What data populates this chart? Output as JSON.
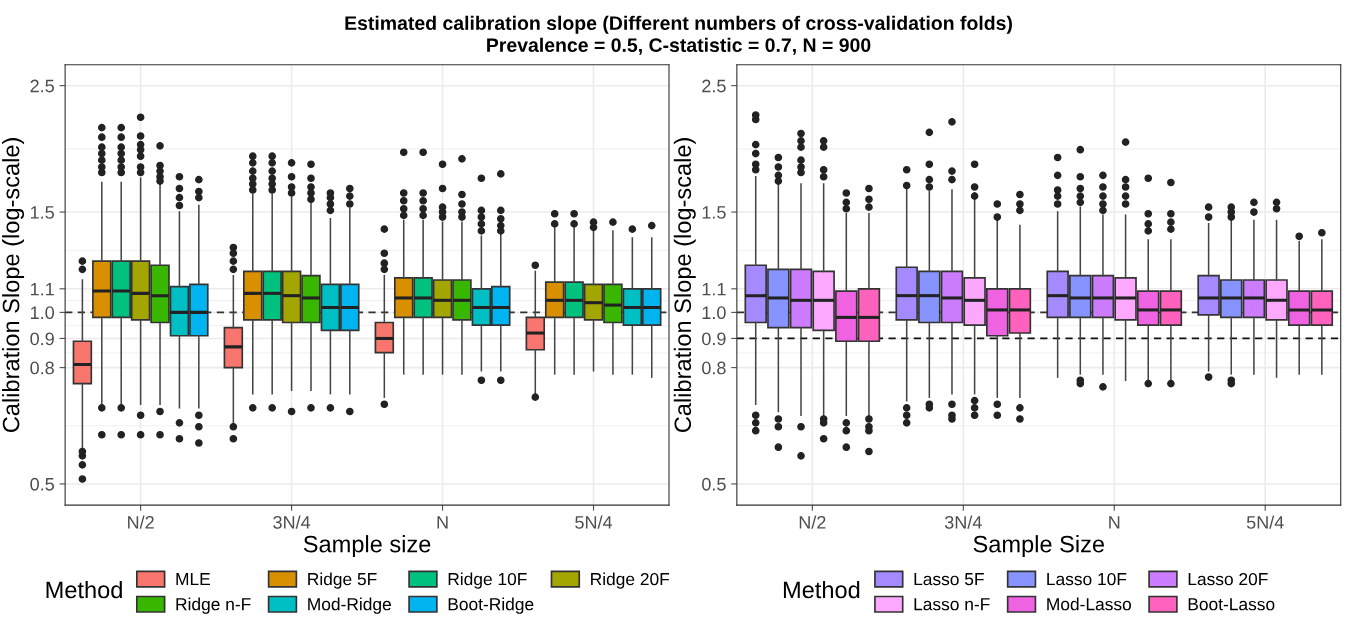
{
  "chart_data": [
    {
      "type": "box",
      "title": "Estimated calibration slope (Different numbers of cross-validation folds)",
      "subtitle": "Prevalence = 0.5, C-statistic = 0.7, N = 900",
      "categories": [
        "N/2",
        "3N/4",
        "N",
        "5N/4"
      ],
      "xlabel": "Sample size",
      "ylabel": "Calibration Slope (log-scale)",
      "log": "y",
      "ylim": [
        0.459,
        2.72
      ],
      "yticks": [
        0.5,
        0.8,
        0.9,
        {
          "value": 1.0,
          "label": "1.0"
        },
        1.1,
        1.5,
        2.5
      ],
      "grid": true,
      "legend": "bottom",
      "legend_title": "Method",
      "ref_lines": [
        {
          "axis": "y",
          "value": 1.0,
          "line_style": "dashed",
          "color": "#333333"
        }
      ],
      "series": [
        {
          "name": "MLE",
          "color": "#f8766d",
          "boxes": [
            {
              "low": 0.58,
              "q1": 0.75,
              "median": 0.81,
              "q3": 0.89,
              "high": 1.14,
              "outliers": [
                1.23,
                1.19,
                0.57,
                0.56,
                0.54,
                0.51
              ]
            },
            {
              "low": 0.64,
              "q1": 0.8,
              "median": 0.87,
              "q3": 0.94,
              "high": 1.16,
              "outliers": [
                1.3,
                1.27,
                1.23,
                1.19,
                0.63,
                0.6
              ]
            },
            {
              "low": 0.71,
              "q1": 0.85,
              "median": 0.9,
              "q3": 0.96,
              "high": 1.16,
              "outliers": [
                1.4,
                1.27,
                1.22,
                1.19,
                0.69
              ]
            },
            {
              "low": 0.72,
              "q1": 0.86,
              "median": 0.92,
              "q3": 0.98,
              "high": 1.18,
              "outliers": [
                1.21,
                0.71
              ]
            }
          ]
        },
        {
          "name": "Ridge 5F",
          "color": "#d89000",
          "boxes": [
            {
              "low": 0.69,
              "q1": 0.98,
              "median": 1.09,
              "q3": 1.23,
              "high": 1.69,
              "outliers": [
                2.11,
                2.03,
                1.95,
                1.9,
                1.85,
                1.8,
                1.76,
                0.68,
                0.61
              ]
            },
            {
              "low": 0.72,
              "q1": 0.97,
              "median": 1.08,
              "q3": 1.18,
              "high": 1.61,
              "outliers": [
                1.88,
                1.83,
                1.77,
                1.72,
                1.68,
                1.64,
                0.68
              ]
            },
            {
              "low": 0.78,
              "q1": 0.98,
              "median": 1.06,
              "q3": 1.15,
              "high": 1.45,
              "outliers": [
                1.91,
                1.62,
                1.57,
                1.52,
                1.48
              ]
            },
            {
              "low": 0.78,
              "q1": 0.98,
              "median": 1.05,
              "q3": 1.13,
              "high": 1.42,
              "outliers": [
                1.49,
                1.43
              ]
            }
          ]
        },
        {
          "name": "Ridge 10F",
          "color": "#00c17e",
          "boxes": [
            {
              "low": 0.69,
              "q1": 0.98,
              "median": 1.09,
              "q3": 1.23,
              "high": 1.69,
              "outliers": [
                2.11,
                2.03,
                1.95,
                1.9,
                1.85,
                1.8,
                1.76,
                0.68,
                0.61
              ]
            },
            {
              "low": 0.72,
              "q1": 0.97,
              "median": 1.08,
              "q3": 1.18,
              "high": 1.61,
              "outliers": [
                1.88,
                1.83,
                1.77,
                1.72,
                1.68,
                1.64,
                0.68
              ]
            },
            {
              "low": 0.78,
              "q1": 0.98,
              "median": 1.06,
              "q3": 1.15,
              "high": 1.45,
              "outliers": [
                1.91,
                1.62,
                1.57,
                1.52,
                1.48
              ]
            },
            {
              "low": 0.78,
              "q1": 0.98,
              "median": 1.05,
              "q3": 1.13,
              "high": 1.42,
              "outliers": [
                1.49,
                1.43
              ]
            }
          ]
        },
        {
          "name": "Ridge 20F",
          "color": "#a3a500",
          "boxes": [
            {
              "low": 0.69,
              "q1": 0.97,
              "median": 1.08,
              "q3": 1.23,
              "high": 1.72,
              "outliers": [
                2.2,
                2.04,
                1.97,
                1.93,
                1.88,
                1.8,
                1.76,
                0.66,
                0.61
              ]
            },
            {
              "low": 0.73,
              "q1": 0.96,
              "median": 1.07,
              "q3": 1.18,
              "high": 1.59,
              "outliers": [
                1.83,
                1.73,
                1.66,
                1.62,
                0.67
              ]
            },
            {
              "low": 0.78,
              "q1": 0.98,
              "median": 1.05,
              "q3": 1.14,
              "high": 1.44,
              "outliers": [
                1.82,
                1.65,
                1.53,
                1.5,
                1.47
              ]
            },
            {
              "low": 0.79,
              "q1": 0.97,
              "median": 1.04,
              "q3": 1.12,
              "high": 1.4,
              "outliers": [
                1.44,
                1.41
              ]
            }
          ]
        },
        {
          "name": "Ridge n-F",
          "color": "#39b600",
          "boxes": [
            {
              "low": 0.69,
              "q1": 0.96,
              "median": 1.07,
              "q3": 1.21,
              "high": 1.69,
              "outliers": [
                1.96,
                1.81,
                1.77,
                1.73,
                1.7,
                0.67,
                0.61
              ]
            },
            {
              "low": 0.73,
              "q1": 0.96,
              "median": 1.06,
              "q3": 1.16,
              "high": 1.56,
              "outliers": [
                1.82,
                1.72,
                1.66,
                1.62,
                1.58,
                0.68
              ]
            },
            {
              "low": 0.78,
              "q1": 0.97,
              "median": 1.05,
              "q3": 1.14,
              "high": 1.44,
              "outliers": [
                1.86,
                1.61,
                1.55,
                1.5,
                1.47
              ]
            },
            {
              "low": 0.78,
              "q1": 0.96,
              "median": 1.03,
              "q3": 1.12,
              "high": 1.39,
              "outliers": [
                1.44
              ]
            }
          ]
        },
        {
          "name": "Mod-Ridge",
          "color": "#00bfc4",
          "boxes": [
            {
              "low": 0.68,
              "q1": 0.91,
              "median": 1.0,
              "q3": 1.11,
              "high": 1.5,
              "outliers": [
                1.73,
                1.65,
                1.59,
                1.54,
                0.64,
                0.6
              ]
            },
            {
              "low": 0.72,
              "q1": 0.93,
              "median": 1.02,
              "q3": 1.12,
              "high": 1.46,
              "outliers": [
                1.62,
                1.59,
                1.55,
                1.51,
                0.68
              ]
            },
            {
              "low": 0.79,
              "q1": 0.95,
              "median": 1.02,
              "q3": 1.1,
              "high": 1.36,
              "outliers": [
                1.72,
                1.51,
                1.47,
                1.43,
                1.39,
                0.76
              ]
            },
            {
              "low": 0.78,
              "q1": 0.95,
              "median": 1.02,
              "q3": 1.1,
              "high": 1.35,
              "outliers": [
                1.4
              ]
            }
          ]
        },
        {
          "name": "Boot-Ridge",
          "color": "#00b4f0",
          "boxes": [
            {
              "low": 0.68,
              "q1": 0.91,
              "median": 1.0,
              "q3": 1.12,
              "high": 1.54,
              "outliers": [
                1.71,
                1.63,
                1.59,
                0.66,
                0.63,
                0.59
              ]
            },
            {
              "low": 0.72,
              "q1": 0.93,
              "median": 1.02,
              "q3": 1.12,
              "high": 1.52,
              "outliers": [
                1.65,
                1.6,
                1.55,
                0.67
              ]
            },
            {
              "low": 0.79,
              "q1": 0.95,
              "median": 1.02,
              "q3": 1.11,
              "high": 1.37,
              "outliers": [
                1.75,
                1.51,
                1.46,
                1.42,
                1.39,
                0.76
              ]
            },
            {
              "low": 0.77,
              "q1": 0.95,
              "median": 1.02,
              "q3": 1.1,
              "high": 1.35,
              "outliers": [
                1.42
              ]
            }
          ]
        }
      ]
    },
    {
      "type": "box",
      "categories": [
        "N/2",
        "3N/4",
        "N",
        "5N/4"
      ],
      "xlabel": "Sample Size",
      "ylabel": "Calibration Slope (log-scale)",
      "log": "y",
      "ylim": [
        0.459,
        2.72
      ],
      "yticks": [
        0.5,
        0.8,
        0.9,
        {
          "value": 1.0,
          "label": "1.0"
        },
        1.1,
        1.5,
        2.5
      ],
      "grid": true,
      "legend": "bottom",
      "legend_title": "Method",
      "ref_lines": [
        {
          "axis": "y",
          "value": 1.0,
          "line_style": "dashed",
          "color": "#333333"
        },
        {
          "axis": "y",
          "value": 0.9,
          "line_style": "dashed",
          "color": "#111111"
        }
      ],
      "series": [
        {
          "name": "Lasso 5F",
          "color": "#a58aff",
          "boxes": [
            {
              "low": 0.69,
              "q1": 0.96,
              "median": 1.07,
              "q3": 1.21,
              "high": 1.73,
              "outliers": [
                2.22,
                2.18,
                1.97,
                1.9,
                1.82,
                1.78,
                0.66,
                0.64,
                0.62
              ]
            },
            {
              "low": 0.7,
              "q1": 0.97,
              "median": 1.07,
              "q3": 1.2,
              "high": 1.65,
              "outliers": [
                1.78,
                1.67,
                0.68,
                0.66,
                0.64
              ]
            },
            {
              "low": 0.77,
              "q1": 0.98,
              "median": 1.07,
              "q3": 1.18,
              "high": 1.5,
              "outliers": [
                1.87,
                1.74,
                1.64,
                1.6,
                1.55
              ]
            },
            {
              "low": 0.79,
              "q1": 0.99,
              "median": 1.06,
              "q3": 1.16,
              "high": 1.43,
              "outliers": [
                1.53,
                1.47,
                0.77
              ]
            }
          ]
        },
        {
          "name": "Lasso 10F",
          "color": "#8794ff",
          "boxes": [
            {
              "low": 0.67,
              "q1": 0.94,
              "median": 1.06,
              "q3": 1.19,
              "high": 1.68,
              "outliers": [
                1.87,
                1.8,
                1.74,
                1.7,
                0.65,
                0.63,
                0.58
              ]
            },
            {
              "low": 0.71,
              "q1": 0.96,
              "median": 1.07,
              "q3": 1.18,
              "high": 1.63,
              "outliers": [
                2.07,
                1.82,
                1.71,
                1.66,
                0.69,
                0.68
              ]
            },
            {
              "low": 0.78,
              "q1": 0.98,
              "median": 1.06,
              "q3": 1.16,
              "high": 1.53,
              "outliers": [
                1.93,
                1.73,
                1.65,
                1.6,
                1.56,
                0.76,
                0.75
              ]
            },
            {
              "low": 0.78,
              "q1": 0.98,
              "median": 1.06,
              "q3": 1.14,
              "high": 1.45,
              "outliers": [
                1.53,
                1.5,
                1.47,
                0.76,
                0.75
              ]
            }
          ]
        },
        {
          "name": "Lasso 20F",
          "color": "#cc7cff",
          "boxes": [
            {
              "low": 0.66,
              "q1": 0.94,
              "median": 1.05,
              "q3": 1.19,
              "high": 1.68,
              "outliers": [
                2.06,
                2.0,
                1.95,
                1.85,
                1.8,
                1.76,
                0.63,
                0.56
              ]
            },
            {
              "low": 0.72,
              "q1": 0.96,
              "median": 1.06,
              "q3": 1.18,
              "high": 1.64,
              "outliers": [
                2.16,
                1.77,
                1.71,
                0.69,
                0.66,
                0.65
              ]
            },
            {
              "low": 0.78,
              "q1": 0.98,
              "median": 1.06,
              "q3": 1.16,
              "high": 1.48,
              "outliers": [
                1.74,
                1.66,
                1.6,
                1.55,
                1.51,
                0.74
              ]
            },
            {
              "low": 0.78,
              "q1": 0.98,
              "median": 1.06,
              "q3": 1.14,
              "high": 1.45,
              "outliers": [
                1.56,
                1.5
              ]
            }
          ]
        },
        {
          "name": "Lasso n-F",
          "color": "#fda8ff",
          "boxes": [
            {
              "low": 0.66,
              "q1": 0.93,
              "median": 1.05,
              "q3": 1.18,
              "high": 1.68,
              "outliers": [
                2.0,
                1.95,
                1.78,
                1.73,
                0.65,
                0.64,
                0.6
              ]
            },
            {
              "low": 0.72,
              "q1": 0.95,
              "median": 1.05,
              "q3": 1.15,
              "high": 1.62,
              "outliers": [
                1.82,
                1.66,
                1.6,
                0.7,
                0.68,
                0.66
              ]
            },
            {
              "low": 0.76,
              "q1": 0.97,
              "median": 1.06,
              "q3": 1.15,
              "high": 1.48,
              "outliers": [
                1.99,
                1.71,
                1.66,
                1.6,
                1.55
              ]
            },
            {
              "low": 0.77,
              "q1": 0.97,
              "median": 1.05,
              "q3": 1.14,
              "high": 1.45,
              "outliers": [
                1.56,
                1.52
              ]
            }
          ]
        },
        {
          "name": "Mod-Lasso",
          "color": "#ef63e2",
          "boxes": [
            {
              "low": 0.66,
              "q1": 0.89,
              "median": 0.98,
              "q3": 1.09,
              "high": 1.49,
              "outliers": [
                1.62,
                1.56,
                1.52,
                0.64,
                0.62,
                0.58
              ]
            },
            {
              "low": 0.71,
              "q1": 0.91,
              "median": 1.01,
              "q3": 1.1,
              "high": 1.45,
              "outliers": [
                1.55,
                1.47,
                0.69,
                0.66
              ]
            },
            {
              "low": 0.76,
              "q1": 0.95,
              "median": 1.01,
              "q3": 1.09,
              "high": 1.34,
              "outliers": [
                1.72,
                1.49,
                1.43,
                1.39,
                0.75
              ]
            },
            {
              "low": 0.78,
              "q1": 0.95,
              "median": 1.01,
              "q3": 1.09,
              "high": 1.33,
              "outliers": [
                1.36
              ]
            }
          ]
        },
        {
          "name": "Boot-Lasso",
          "color": "#ff62bc",
          "boxes": [
            {
              "low": 0.66,
              "q1": 0.89,
              "median": 0.98,
              "q3": 1.1,
              "high": 1.49,
              "outliers": [
                1.65,
                1.58,
                1.53,
                0.65,
                0.63,
                0.62,
                0.57
              ]
            },
            {
              "low": 0.71,
              "q1": 0.92,
              "median": 1.01,
              "q3": 1.1,
              "high": 1.42,
              "outliers": [
                1.61,
                1.55,
                1.51,
                0.68,
                0.65
              ]
            },
            {
              "low": 0.76,
              "q1": 0.95,
              "median": 1.01,
              "q3": 1.09,
              "high": 1.34,
              "outliers": [
                1.69,
                1.49,
                1.44,
                1.4,
                0.75
              ]
            },
            {
              "low": 0.78,
              "q1": 0.95,
              "median": 1.01,
              "q3": 1.09,
              "high": 1.34,
              "outliers": [
                1.38
              ]
            }
          ]
        }
      ]
    }
  ]
}
